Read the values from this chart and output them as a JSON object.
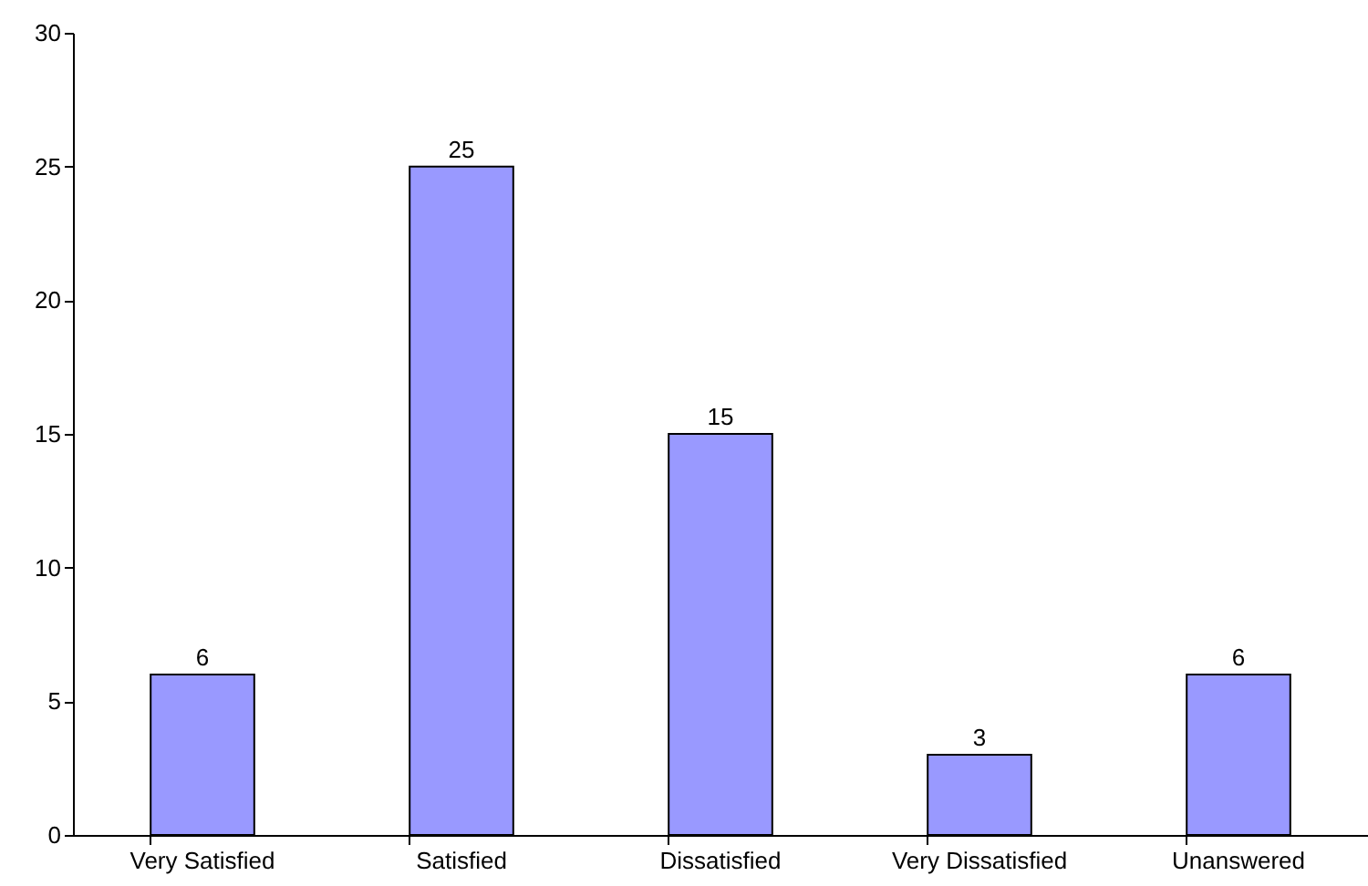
{
  "chart_data": {
    "type": "bar",
    "categories": [
      "Very Satisfied",
      "Satisfied",
      "Dissatisfied",
      "Very Dissatisfied",
      "Unanswered"
    ],
    "values": [
      6,
      25,
      15,
      3,
      6
    ],
    "color": "#9999ff",
    "ylim": [
      0,
      30
    ],
    "yticks": [
      0,
      5,
      10,
      15,
      20,
      25,
      30
    ],
    "grid": false,
    "data_labels": true
  }
}
